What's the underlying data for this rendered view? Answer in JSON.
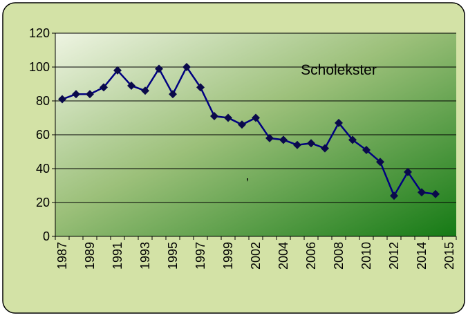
{
  "chart_data": {
    "type": "line",
    "title": "Scholekster",
    "annotation": ",",
    "categories": [
      "1987",
      null,
      "1989",
      null,
      "1991",
      null,
      "1993",
      null,
      "1995",
      null,
      "1997",
      null,
      "1999",
      null,
      "2002",
      null,
      "2004",
      null,
      "2006",
      null,
      "2008",
      null,
      "2010",
      null,
      "2012",
      null,
      "2014",
      null,
      "2015"
    ],
    "series": [
      {
        "name": "Scholekster",
        "color": "#000080",
        "values": [
          81,
          84,
          84,
          88,
          98,
          89,
          86,
          99,
          84,
          100,
          88,
          71,
          70,
          66,
          70,
          58,
          57,
          54,
          55,
          52,
          67,
          57,
          51,
          44,
          24,
          38,
          26,
          25,
          null
        ]
      }
    ],
    "ylim": [
      0,
      120
    ],
    "yticks": [
      0,
      20,
      40,
      60,
      80,
      100,
      120
    ],
    "grid": true
  }
}
